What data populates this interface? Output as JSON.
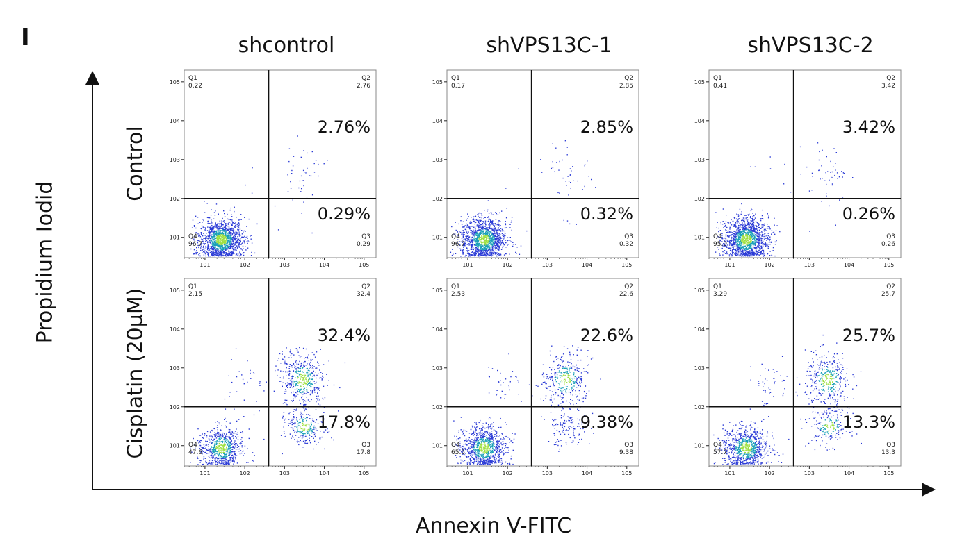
{
  "panel_letter": "I",
  "columns": [
    "shcontrol",
    "shVPS13C-1",
    "shVPS13C-2"
  ],
  "rows": [
    "Control",
    "Cisplatin (20μM)"
  ],
  "x_axis_title": "Annexin V-FITC",
  "y_axis_title": "Propidium Iodid",
  "colors": {
    "low_density": "#2b3bd6",
    "mid_density": "#1aa0b8",
    "high_density": "#9fe040"
  },
  "chart_data": {
    "type": "scatter",
    "subtype": "flow-cytometry-quadrant-plot",
    "x_scale": "log",
    "y_scale": "log",
    "xlim": [
      3,
      200000
    ],
    "ylim": [
      3,
      200000
    ],
    "x_ticks": [
      "10^1",
      "10^2",
      "10^3",
      "10^4",
      "10^5"
    ],
    "y_ticks": [
      "10^1",
      "10^2",
      "10^3",
      "10^4",
      "10^5"
    ],
    "gate_x": 400,
    "gate_y": 100,
    "panels": [
      {
        "row": "Control",
        "column": "shcontrol",
        "Q1": "0.22",
        "Q2": "2.76",
        "Q3": "0.29",
        "Q4": "96.7",
        "upper_right_pct": "2.76%",
        "lower_right_pct": "0.29%"
      },
      {
        "row": "Control",
        "column": "shVPS13C-1",
        "Q1": "0.17",
        "Q2": "2.85",
        "Q3": "0.32",
        "Q4": "96.7",
        "upper_right_pct": "2.85%",
        "lower_right_pct": "0.32%"
      },
      {
        "row": "Control",
        "column": "shVPS13C-2",
        "Q1": "0.41",
        "Q2": "3.42",
        "Q3": "0.26",
        "Q4": "95.9",
        "upper_right_pct": "3.42%",
        "lower_right_pct": "0.26%"
      },
      {
        "row": "Cisplatin (20μM)",
        "column": "shcontrol",
        "Q1": "2.15",
        "Q2": "32.4",
        "Q3": "17.8",
        "Q4": "47.6",
        "upper_right_pct": "32.4%",
        "lower_right_pct": "17.8%"
      },
      {
        "row": "Cisplatin (20μM)",
        "column": "shVPS13C-1",
        "Q1": "2.53",
        "Q2": "22.6",
        "Q3": "9.38",
        "Q4": "65.5",
        "upper_right_pct": "22.6%",
        "lower_right_pct": "9.38%"
      },
      {
        "row": "Cisplatin (20μM)",
        "column": "shVPS13C-2",
        "Q1": "3.29",
        "Q2": "25.7",
        "Q3": "13.3",
        "Q4": "57.7",
        "upper_right_pct": "25.7%",
        "lower_right_pct": "13.3%"
      }
    ]
  }
}
